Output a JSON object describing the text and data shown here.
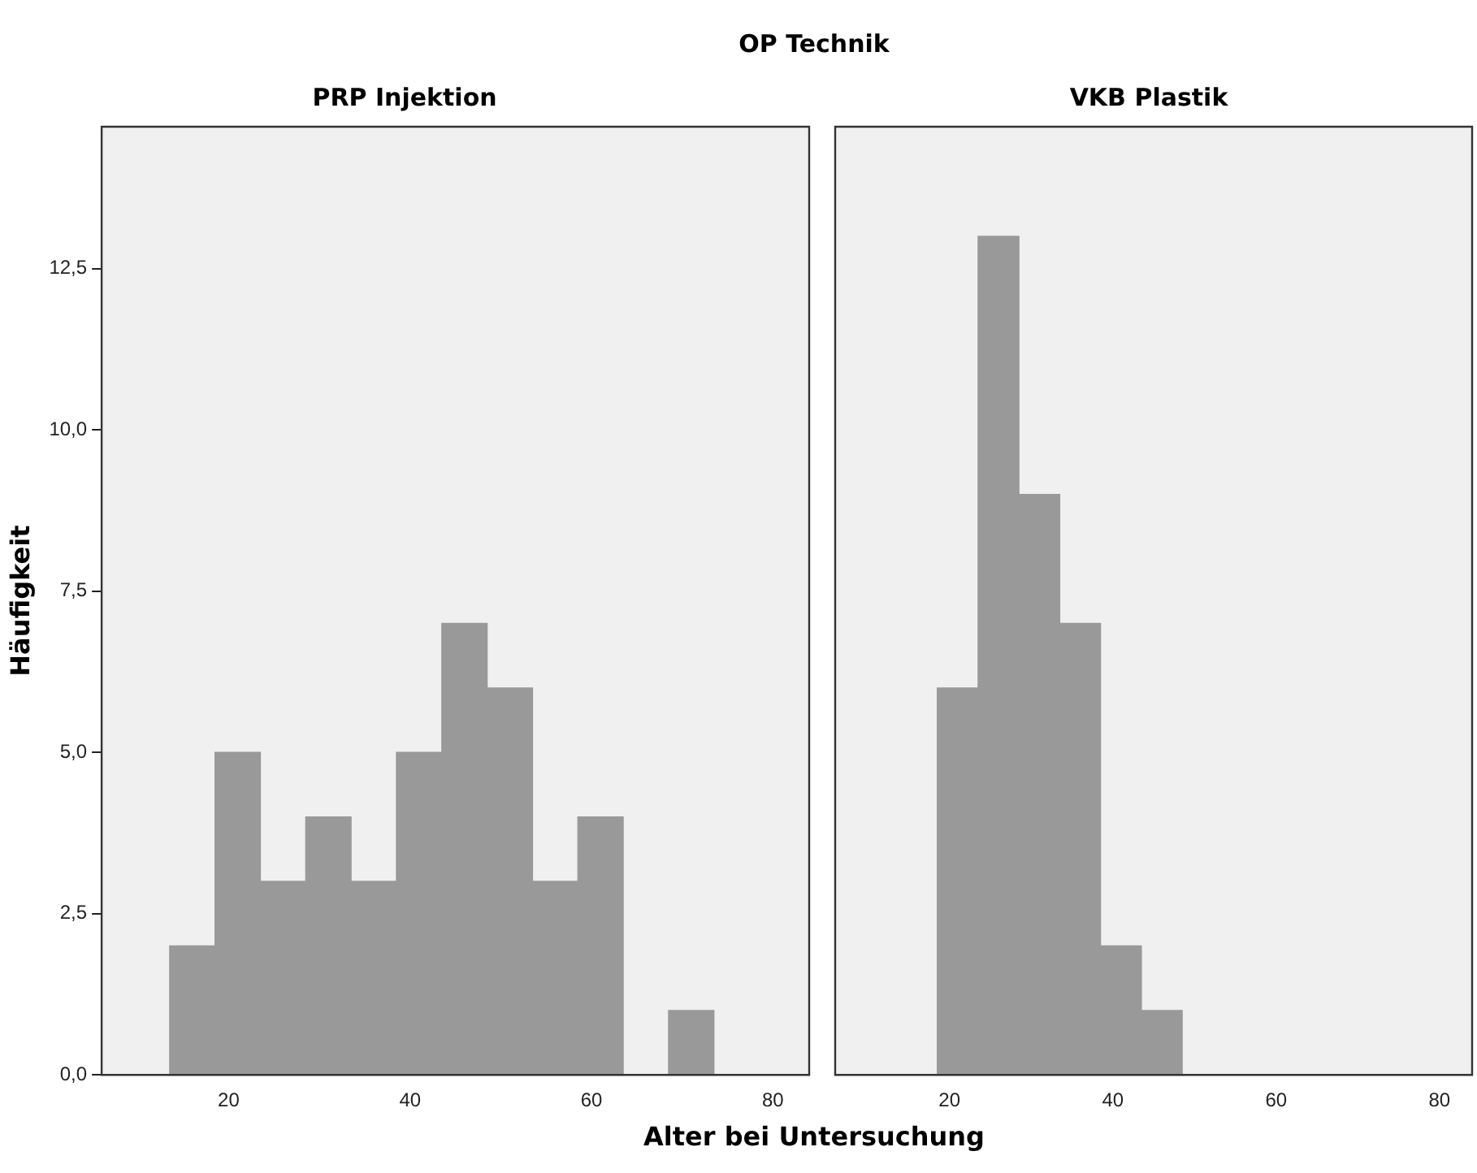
{
  "chart_data": [
    {
      "type": "histogram",
      "title": "PRP Injektion",
      "xlabel": "Alter bei Untersuchung",
      "ylabel": "Häufigkeit",
      "annotations": [
        "OP Technik"
      ],
      "bins": [
        13.5,
        18.5,
        23.5,
        28.5,
        33.5,
        38.5,
        43.5,
        48.5,
        53.5,
        58.5,
        63.5,
        68.5,
        73.5
      ],
      "values": [
        2,
        5,
        3,
        4,
        3,
        5,
        7,
        6,
        3,
        4,
        0,
        1
      ],
      "color": "#999999",
      "xlim": [
        6,
        84
      ],
      "xticks": [
        20,
        40,
        60,
        80
      ],
      "ylim": [
        0,
        14.7
      ],
      "yticks": [
        {
          "value": 0,
          "label": "0,0"
        },
        {
          "value": 2.5,
          "label": "2,5"
        },
        {
          "value": 5,
          "label": "5,0"
        },
        {
          "value": 7.5,
          "label": "7,5"
        },
        {
          "value": 10,
          "label": "10,0"
        },
        {
          "value": 12.5,
          "label": "12,5"
        }
      ],
      "grid": false
    },
    {
      "type": "histogram",
      "title": "VKB Plastik",
      "bins": [
        18.5,
        23.5,
        28.5,
        33.5,
        38.5,
        43.5,
        48.5
      ],
      "values": [
        6,
        13,
        9,
        7,
        2,
        1
      ],
      "color": "#999999",
      "xlim": [
        6,
        84
      ],
      "xticks": [
        20,
        40,
        60,
        80
      ],
      "ylim": [
        0,
        14.7
      ],
      "grid": false,
      "tick_labels": "x"
    }
  ]
}
